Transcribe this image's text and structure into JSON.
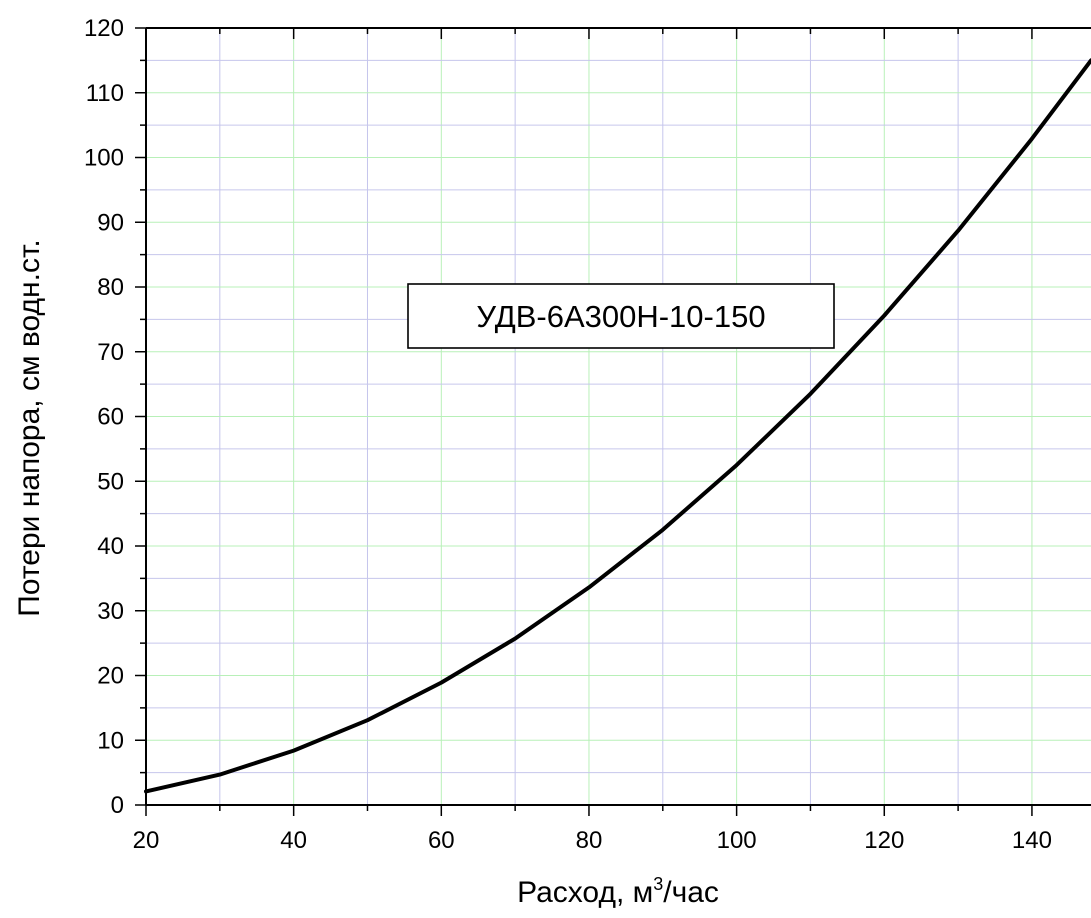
{
  "chart_data": {
    "type": "line",
    "title": "",
    "xlabel": "Расход, м³/час",
    "ylabel": "Потери напора, см водн.ст.",
    "xlabel_parts": {
      "before": "Расход, м",
      "sup": "3",
      "after": "/час"
    },
    "xlim": [
      20,
      148
    ],
    "ylim": [
      0,
      120
    ],
    "x_ticks": [
      20,
      40,
      60,
      80,
      100,
      120,
      140
    ],
    "y_ticks": [
      0,
      10,
      20,
      30,
      40,
      50,
      60,
      70,
      80,
      90,
      100,
      110,
      120
    ],
    "x_grid": [
      30,
      40,
      50,
      60,
      70,
      80,
      90,
      100,
      110,
      120,
      130,
      140
    ],
    "y_grid": [
      5,
      10,
      15,
      20,
      25,
      30,
      35,
      40,
      45,
      50,
      55,
      60,
      65,
      70,
      75,
      80,
      85,
      90,
      95,
      100,
      105,
      110,
      115
    ],
    "grid": true,
    "annotation": "УДВ-6А300Н-10-150",
    "series": [
      {
        "x": [
          20,
          30,
          40,
          50,
          60,
          70,
          80,
          90,
          100,
          110,
          120,
          130,
          140,
          148
        ],
        "y": [
          2.1,
          4.7,
          8.4,
          13.1,
          18.9,
          25.7,
          33.6,
          42.5,
          52.5,
          63.5,
          75.6,
          88.7,
          102.9,
          115.0
        ]
      }
    ],
    "colors": {
      "series": "#000000",
      "grid_major": "#b8f0b8",
      "grid_minor": "#c6c6ec",
      "axis": "#000000",
      "annotation_border": "#000000"
    }
  }
}
